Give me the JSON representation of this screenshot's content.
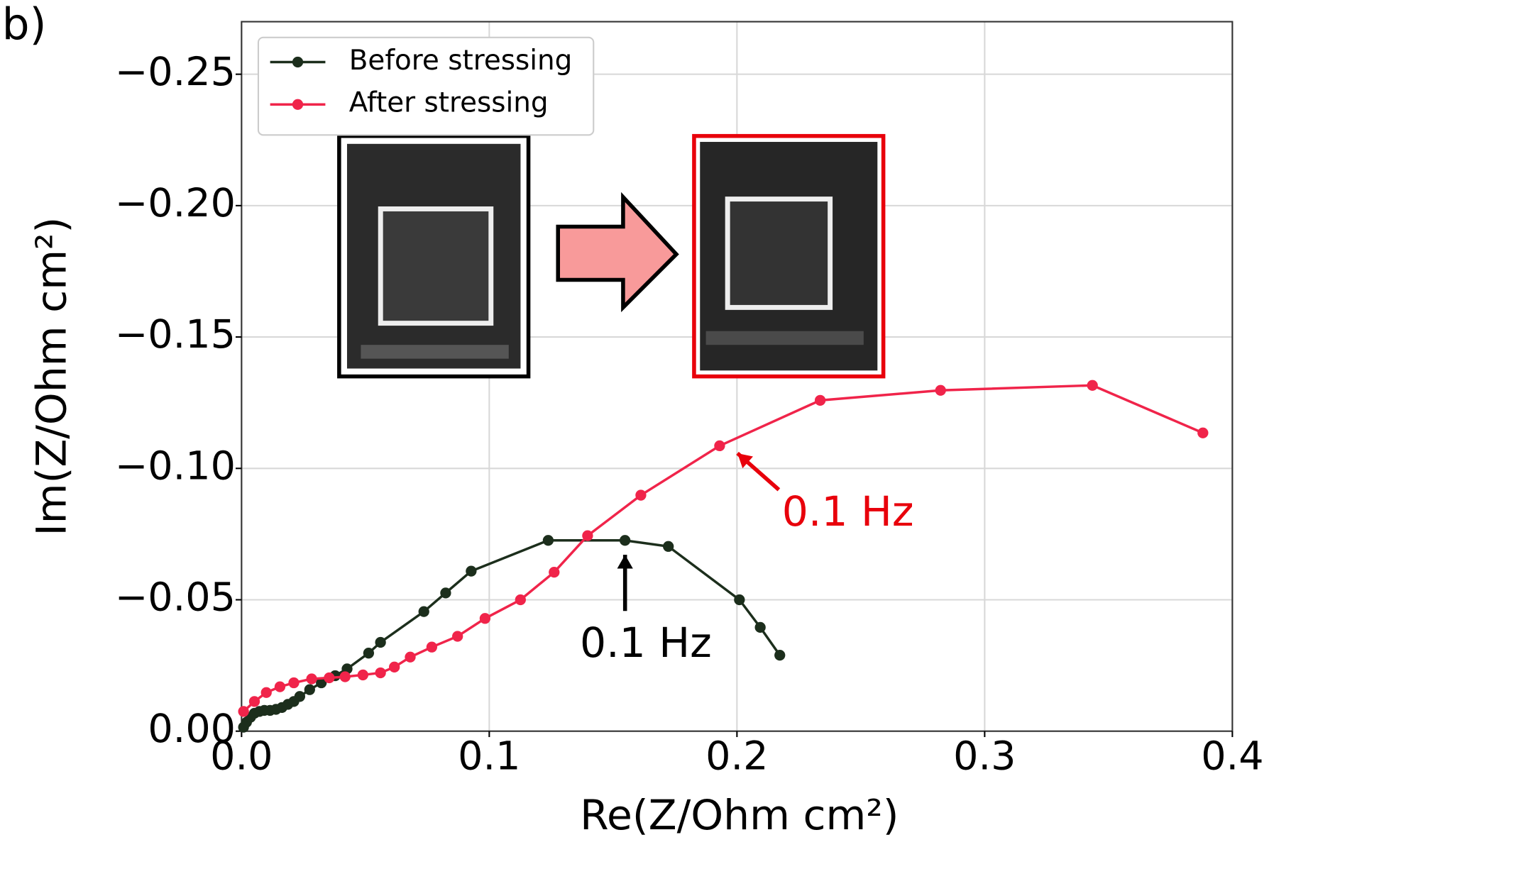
{
  "chart_data": {
    "type": "line",
    "panel_label": "b)",
    "x_label": "Re(Z/Ohm cm²)",
    "y_label": "Im(Z/Ohm cm²)",
    "xlim": [
      0,
      0.4
    ],
    "ylim": [
      0,
      -0.27
    ],
    "xticks": [
      {
        "value": 0,
        "label": "0.0"
      },
      0.1,
      0.2,
      0.3,
      0.4
    ],
    "yticks": [
      {
        "value": 0,
        "label": "0.00"
      },
      {
        "value": -0.05,
        "label": "−0.05"
      },
      {
        "value": -0.1,
        "label": "−0.10"
      },
      {
        "value": -0.15,
        "label": "−0.15"
      },
      {
        "value": -0.2,
        "label": "−0.20"
      },
      {
        "value": -0.25,
        "label": "−0.25"
      }
    ],
    "grid": true,
    "legend": "upper left",
    "series": [
      {
        "name": "Before stressing",
        "color": "#1c2e1c",
        "x": [
          0.0008,
          0.002,
          0.0036,
          0.0052,
          0.0072,
          0.0092,
          0.0115,
          0.0139,
          0.0163,
          0.0187,
          0.0211,
          0.0235,
          0.0275,
          0.0322,
          0.0378,
          0.0426,
          0.0513,
          0.0561,
          0.0736,
          0.0824,
          0.0927,
          0.1238,
          0.1548,
          0.1723,
          0.201,
          0.2094,
          0.2173
        ],
        "values": [
          -0.0015,
          -0.0034,
          -0.0053,
          -0.0068,
          -0.0075,
          -0.0079,
          -0.0079,
          -0.0083,
          -0.009,
          -0.0102,
          -0.0113,
          -0.0132,
          -0.0158,
          -0.0184,
          -0.0211,
          -0.0237,
          -0.0297,
          -0.0338,
          -0.0455,
          -0.0526,
          -0.0609,
          -0.0726,
          -0.0726,
          -0.0703,
          -0.05,
          -0.0395,
          -0.0289
        ]
      },
      {
        "name": "After stressing",
        "color": "#f0244a",
        "x": [
          0.0008,
          0.0052,
          0.01,
          0.0155,
          0.0211,
          0.0283,
          0.0354,
          0.0418,
          0.049,
          0.0561,
          0.0617,
          0.0681,
          0.0768,
          0.0872,
          0.0983,
          0.1126,
          0.1262,
          0.1397,
          0.1612,
          0.193,
          0.2336,
          0.2822,
          0.3435,
          0.3881
        ],
        "values": [
          -0.0075,
          -0.0113,
          -0.0147,
          -0.0169,
          -0.0184,
          -0.0199,
          -0.0203,
          -0.0207,
          -0.0214,
          -0.0222,
          -0.0244,
          -0.0282,
          -0.032,
          -0.0361,
          -0.0429,
          -0.05,
          -0.0605,
          -0.0744,
          -0.0898,
          -0.1086,
          -0.1259,
          -0.1297,
          -0.1316,
          -0.1135
        ]
      }
    ],
    "annotations": [
      {
        "text": "0.1 Hz",
        "color": "#e8000b"
      },
      {
        "text": "0.1 Hz",
        "color": "#000000"
      }
    ]
  }
}
